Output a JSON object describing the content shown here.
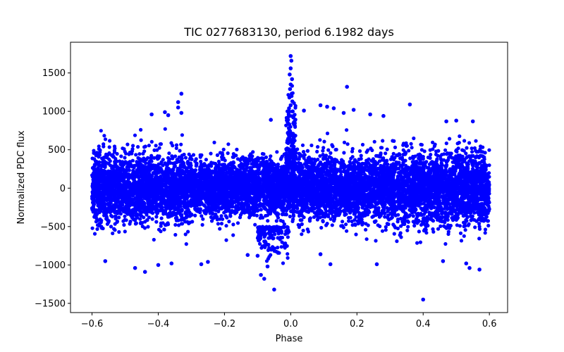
{
  "chart_data": {
    "type": "scatter",
    "title": "TIC 0277683130, period 6.1982 days",
    "xlabel": "Phase",
    "ylabel": "Normalized PDC flux",
    "xlim": [
      -0.665,
      0.655
    ],
    "ylim": [
      -1620,
      1900
    ],
    "xticks": [
      -0.6,
      -0.4,
      -0.2,
      0.0,
      0.2,
      0.4,
      0.6
    ],
    "xtick_labels": [
      "−0.6",
      "−0.4",
      "−0.2",
      "0.0",
      "0.2",
      "0.4",
      "0.6"
    ],
    "yticks": [
      -1500,
      -1000,
      -500,
      0,
      500,
      1000,
      1500
    ],
    "ytick_labels": [
      "−1500",
      "−1000",
      "−500",
      "0",
      "500",
      "1000",
      "1500"
    ],
    "grid": false,
    "marker_color": "#0000ff",
    "series": [
      {
        "points": [
          [
            0.0,
            1720
          ],
          [
            0.002,
            1660
          ],
          [
            0.0,
            1560
          ],
          [
            -0.003,
            1480
          ],
          [
            0.004,
            1420
          ],
          [
            0.0,
            1350
          ],
          [
            -0.002,
            1290
          ],
          [
            0.003,
            1230
          ],
          [
            -0.004,
            1180
          ],
          [
            0.005,
            1130
          ],
          [
            0.0,
            1080
          ],
          [
            -0.005,
            1040
          ],
          [
            0.006,
            1000
          ],
          [
            -0.006,
            960
          ],
          [
            0.008,
            920
          ],
          [
            -0.008,
            890
          ],
          [
            0.01,
            860
          ],
          [
            -0.33,
            1230
          ],
          [
            -0.34,
            1120
          ],
          [
            -0.34,
            1050
          ],
          [
            -0.42,
            960
          ],
          [
            -0.38,
            990
          ],
          [
            -0.37,
            950
          ],
          [
            -0.33,
            980
          ],
          [
            -0.06,
            890
          ],
          [
            0.17,
            1320
          ],
          [
            0.36,
            1090
          ],
          [
            0.09,
            1080
          ],
          [
            0.11,
            1060
          ],
          [
            0.13,
            1040
          ],
          [
            0.04,
            1010
          ],
          [
            0.19,
            1020
          ],
          [
            0.24,
            960
          ],
          [
            0.28,
            940
          ],
          [
            0.16,
            980
          ],
          [
            0.5,
            880
          ],
          [
            0.47,
            870
          ],
          [
            0.55,
            870
          ],
          [
            0.4,
            -1450
          ],
          [
            -0.05,
            -1320
          ],
          [
            -0.08,
            -1180
          ],
          [
            -0.44,
            -1090
          ],
          [
            -0.09,
            -1130
          ],
          [
            -0.07,
            -1020
          ],
          [
            0.12,
            -990
          ],
          [
            0.26,
            -990
          ],
          [
            -0.27,
            -990
          ],
          [
            -0.4,
            -1000
          ],
          [
            -0.47,
            -1040
          ],
          [
            0.54,
            -1040
          ],
          [
            0.57,
            -1060
          ],
          [
            0.53,
            -980
          ],
          [
            0.46,
            -950
          ],
          [
            -0.56,
            -950
          ],
          [
            -0.36,
            -980
          ],
          [
            -0.25,
            -960
          ],
          [
            0.09,
            -860
          ],
          [
            -0.1,
            -880
          ],
          [
            -0.13,
            -870
          ]
        ]
      }
    ]
  }
}
